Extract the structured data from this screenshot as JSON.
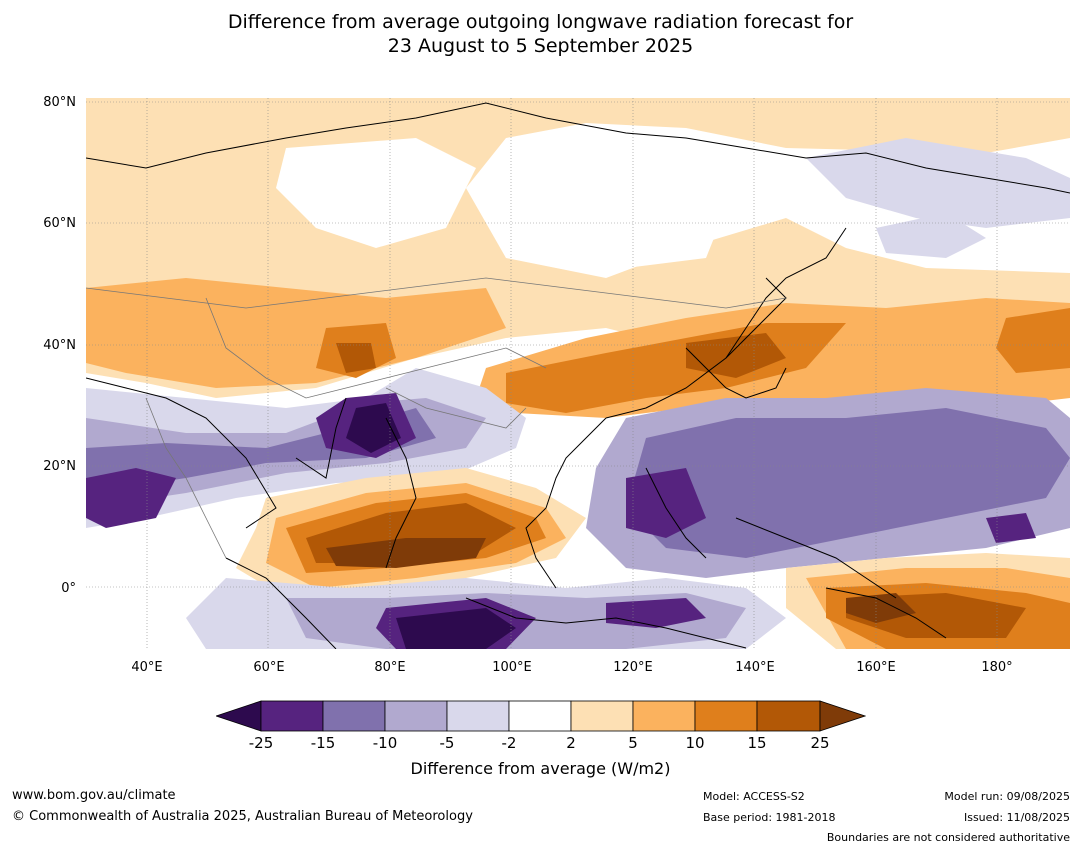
{
  "title_line1": "Difference from average outgoing longwave radiation forecast for",
  "title_line2": "23 August to 5 September 2025",
  "map": {
    "lat_labels": [
      "80°N",
      "60°N",
      "40°N",
      "20°N",
      "0°"
    ],
    "lon_labels": [
      "40°E",
      "60°E",
      "80°E",
      "100°E",
      "120°E",
      "140°E",
      "160°E",
      "180°"
    ],
    "lat_range": [
      -10,
      81
    ],
    "lon_range": [
      30,
      192
    ]
  },
  "colorbar": {
    "ticks": [
      "-25",
      "-15",
      "-10",
      "-5",
      "-2",
      "2",
      "5",
      "10",
      "15",
      "25"
    ],
    "colors": [
      "#2d0a4e",
      "#56237f",
      "#8071ad",
      "#b1a9cf",
      "#d9d8eb",
      "#ffffff",
      "#fde0b4",
      "#fbb25e",
      "#df7f1c",
      "#b25806",
      "#7f3b08"
    ],
    "label": "Difference from average (W/m2)"
  },
  "footer": {
    "website": "www.bom.gov.au/climate",
    "copyright": "© Commonwealth of Australia 2025, Australian Bureau of Meteorology",
    "model": "Model: ACCESS-S2",
    "base_period": "Base period: 1981-2018",
    "model_run": "Model run: 09/08/2025",
    "issued": "Issued: 11/08/2025",
    "disclaimer": "Boundaries are not considered authoritative"
  }
}
